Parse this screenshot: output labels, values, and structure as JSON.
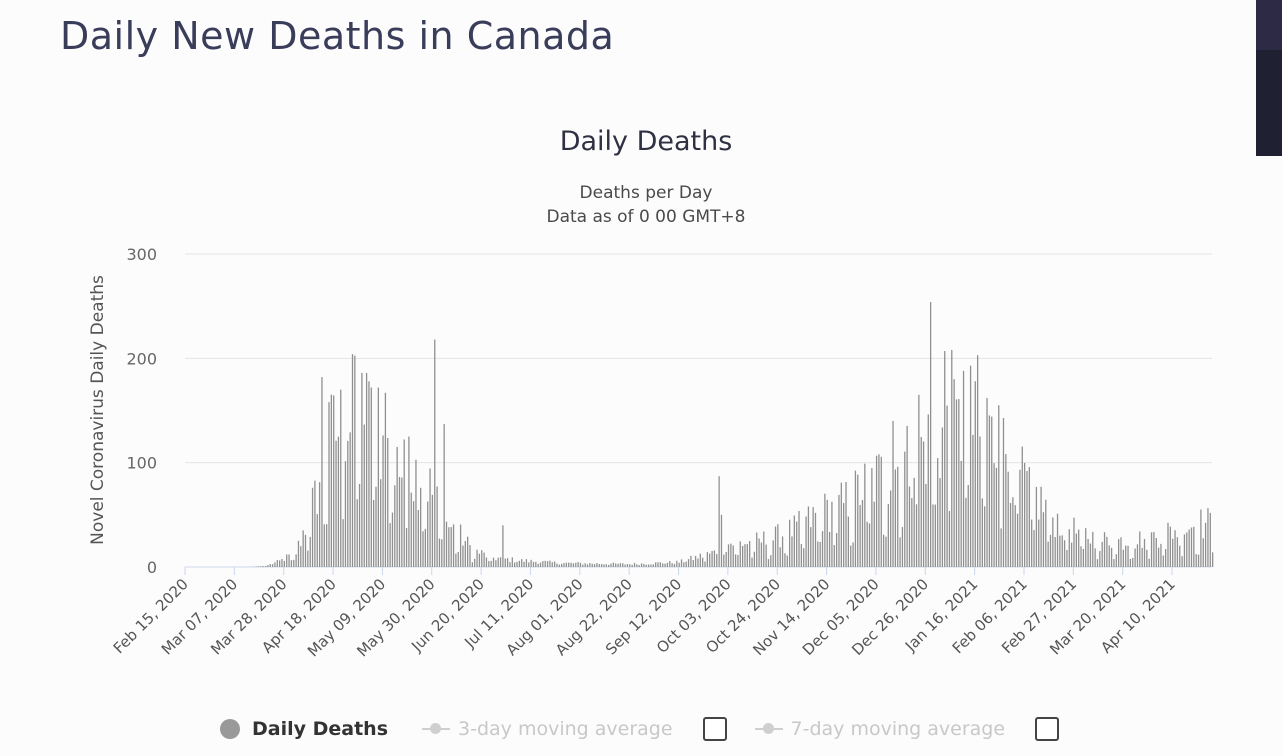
{
  "page": {
    "title": "Daily New Deaths in Canada"
  },
  "chart_data": {
    "type": "bar",
    "title": "Daily Deaths",
    "subtitle_line1": "Deaths per Day",
    "subtitle_line2": "Data as of 0 00 GMT+8",
    "ylabel": "Novel Coronavirus Daily Deaths",
    "xlabel": "",
    "ylim": [
      0,
      300
    ],
    "yticks": [
      "0",
      "100",
      "200",
      "300"
    ],
    "x_start": "Feb 15, 2020",
    "x_end": "Apr 27, 2021",
    "xticks": [
      "Feb 15, 2020",
      "Mar 07, 2020",
      "Mar 28, 2020",
      "Apr 18, 2020",
      "May 09, 2020",
      "May 30, 2020",
      "Jun 20, 2020",
      "Jul 11, 2020",
      "Aug 01, 2020",
      "Aug 22, 2020",
      "Sep 12, 2020",
      "Oct 03, 2020",
      "Oct 24, 2020",
      "Nov 14, 2020",
      "Dec 05, 2020",
      "Dec 26, 2020",
      "Jan 16, 2021",
      "Feb 06, 2021",
      "Feb 27, 2021",
      "Mar 20, 2021",
      "Apr 10, 2021"
    ],
    "anchors": [
      [
        0,
        0
      ],
      [
        25,
        0
      ],
      [
        34,
        1
      ],
      [
        40,
        6
      ],
      [
        47,
        15
      ],
      [
        55,
        70
      ],
      [
        61,
        130
      ],
      [
        67,
        150
      ],
      [
        73,
        160
      ],
      [
        80,
        150
      ],
      [
        87,
        110
      ],
      [
        94,
        95
      ],
      [
        101,
        100
      ],
      [
        106,
        70
      ],
      [
        111,
        45
      ],
      [
        116,
        35
      ],
      [
        122,
        18
      ],
      [
        130,
        10
      ],
      [
        140,
        7
      ],
      [
        160,
        4
      ],
      [
        190,
        3
      ],
      [
        210,
        5
      ],
      [
        225,
        15
      ],
      [
        232,
        25
      ],
      [
        240,
        25
      ],
      [
        250,
        30
      ],
      [
        260,
        40
      ],
      [
        270,
        55
      ],
      [
        280,
        65
      ],
      [
        290,
        85
      ],
      [
        300,
        100
      ],
      [
        307,
        110
      ],
      [
        315,
        125
      ],
      [
        322,
        135
      ],
      [
        328,
        140
      ],
      [
        335,
        140
      ],
      [
        342,
        135
      ],
      [
        350,
        115
      ],
      [
        356,
        90
      ],
      [
        363,
        70
      ],
      [
        370,
        50
      ],
      [
        380,
        35
      ],
      [
        390,
        28
      ],
      [
        400,
        27
      ],
      [
        410,
        30
      ],
      [
        420,
        38
      ],
      [
        430,
        45
      ],
      [
        437,
        45
      ]
    ],
    "spikes": [
      [
        58,
        182
      ],
      [
        61,
        158
      ],
      [
        66,
        170
      ],
      [
        71,
        204
      ],
      [
        75,
        186
      ],
      [
        79,
        172
      ],
      [
        82,
        172
      ],
      [
        85,
        167
      ],
      [
        90,
        115
      ],
      [
        95,
        125
      ],
      [
        106,
        218
      ],
      [
        110,
        137
      ],
      [
        135,
        40
      ],
      [
        227,
        87
      ],
      [
        228,
        50
      ],
      [
        301,
        140
      ],
      [
        312,
        165
      ],
      [
        317,
        254
      ],
      [
        323,
        207
      ],
      [
        326,
        208
      ],
      [
        331,
        188
      ],
      [
        334,
        193
      ],
      [
        337,
        203
      ],
      [
        341,
        162
      ],
      [
        346,
        155
      ]
    ],
    "series": [
      {
        "name": "Daily Deaths",
        "color": "#8f8f8f"
      },
      {
        "name": "3-day moving average",
        "color": "#cfcfcf"
      },
      {
        "name": "7-day moving average",
        "color": "#cfcfcf"
      }
    ]
  },
  "legend": {
    "daily": "Daily Deaths",
    "ma3": "3-day moving average",
    "ma7": "7-day moving average"
  }
}
